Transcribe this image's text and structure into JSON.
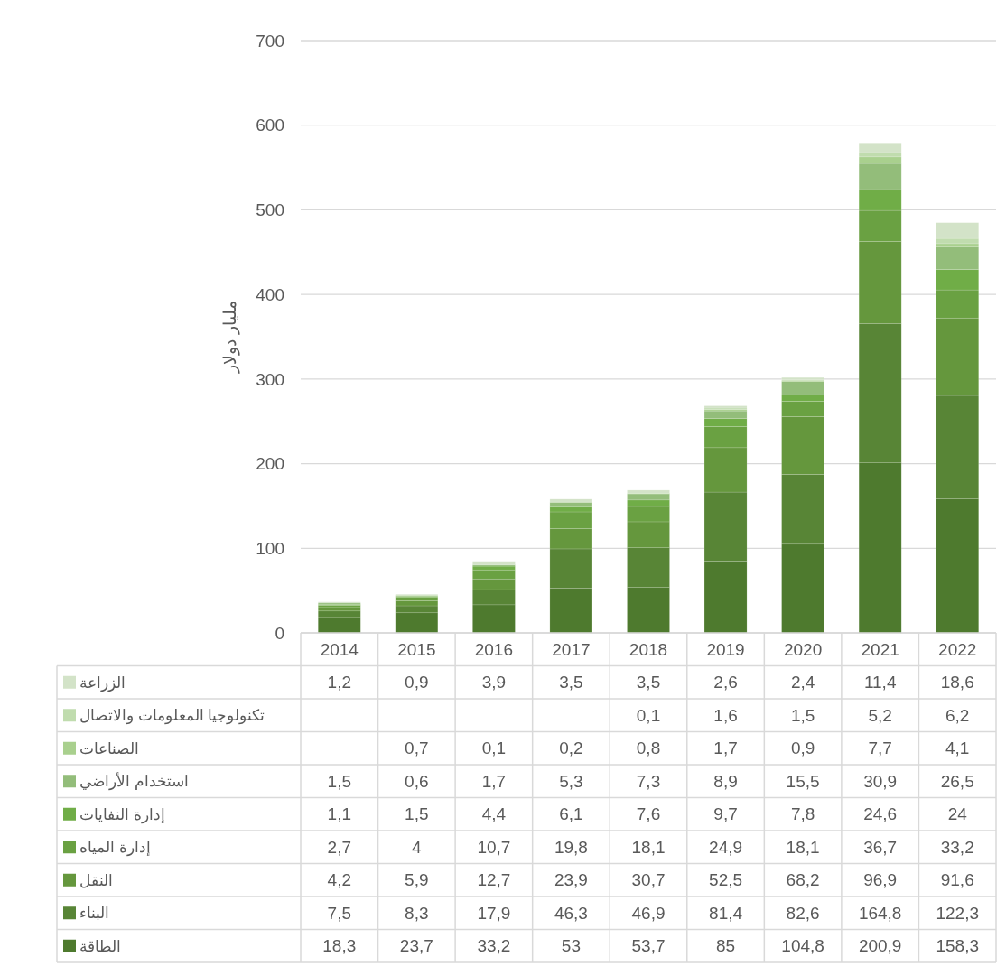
{
  "chart_data": {
    "type": "bar",
    "stacked": true,
    "ylabel": "مليار دولار",
    "categories": [
      "2014",
      "2015",
      "2016",
      "2017",
      "2018",
      "2019",
      "2020",
      "2021",
      "2022"
    ],
    "ylim": [
      0,
      700
    ],
    "yticks": [
      0,
      100,
      200,
      300,
      400,
      500,
      600,
      700
    ],
    "grid": "y",
    "legend": "bottom",
    "series": [
      {
        "name": "الطاقة",
        "color": "#4e7a2e",
        "values": [
          18.3,
          23.7,
          33.2,
          53,
          53.7,
          85,
          104.8,
          200.9,
          158.3
        ],
        "value_labels": [
          "18,3",
          "23,7",
          "33,2",
          "53",
          "53,7",
          "85",
          "104,8",
          "200,9",
          "158,3"
        ]
      },
      {
        "name": "البناء",
        "color": "#588536",
        "values": [
          7.5,
          8.3,
          17.9,
          46.3,
          46.9,
          81.4,
          82.6,
          164.8,
          122.3
        ],
        "value_labels": [
          "7,5",
          "8,3",
          "17,9",
          "46,3",
          "46,9",
          "81,4",
          "82,6",
          "164,8",
          "122,3"
        ]
      },
      {
        "name": "النقل",
        "color": "#65973d",
        "values": [
          4.2,
          5.9,
          12.7,
          23.9,
          30.7,
          52.5,
          68.2,
          96.9,
          91.6
        ],
        "value_labels": [
          "4,2",
          "5,9",
          "12,7",
          "23,9",
          "30,7",
          "52,5",
          "68,2",
          "96,9",
          "91,6"
        ]
      },
      {
        "name": "إدارة المياه",
        "color": "#6aa142",
        "values": [
          2.7,
          4,
          10.7,
          19.8,
          18.1,
          24.9,
          18.1,
          36.7,
          33.2
        ],
        "value_labels": [
          "2,7",
          "4",
          "10,7",
          "19,8",
          "18,1",
          "24,9",
          "18,1",
          "36,7",
          "33,2"
        ]
      },
      {
        "name": "إدارة النفايات",
        "color": "#70ad47",
        "values": [
          1.1,
          1.5,
          4.4,
          6.1,
          7.6,
          9.7,
          7.8,
          24.6,
          24
        ],
        "value_labels": [
          "1,1",
          "1,5",
          "4,4",
          "6,1",
          "7,6",
          "9,7",
          "7,8",
          "24,6",
          "24"
        ]
      },
      {
        "name": "استخدام الأراضي",
        "color": "#93bd7a",
        "values": [
          1.5,
          0.6,
          1.7,
          5.3,
          7.3,
          8.9,
          15.5,
          30.9,
          26.5
        ],
        "value_labels": [
          "1,5",
          "0,6",
          "1,7",
          "5,3",
          "7,3",
          "8,9",
          "15,5",
          "30,9",
          "26,5"
        ]
      },
      {
        "name": "الصناعات",
        "color": "#a9d08e",
        "values": [
          null,
          0.7,
          0.1,
          0.2,
          0.8,
          1.7,
          0.9,
          7.7,
          4.1
        ],
        "value_labels": [
          null,
          "0,7",
          "0,1",
          "0,2",
          "0,8",
          "1,7",
          "0,9",
          "7,7",
          "4,1"
        ]
      },
      {
        "name": "تكنولوجيا المعلومات والاتصال",
        "color": "#c0dcae",
        "values": [
          null,
          null,
          null,
          null,
          0.1,
          1.6,
          1.5,
          5.2,
          6.2
        ],
        "value_labels": [
          null,
          null,
          null,
          null,
          "0,1",
          "1,6",
          "1,5",
          "5,2",
          "6,2"
        ]
      },
      {
        "name": "الزراعة",
        "color": "#d3e3c8",
        "values": [
          1.2,
          0.9,
          3.9,
          3.5,
          3.5,
          2.6,
          2.4,
          11.4,
          18.6
        ],
        "value_labels": [
          "1,2",
          "0,9",
          "3,9",
          "3,5",
          "3,5",
          "2,6",
          "2,4",
          "11,4",
          "18,6"
        ]
      }
    ]
  }
}
